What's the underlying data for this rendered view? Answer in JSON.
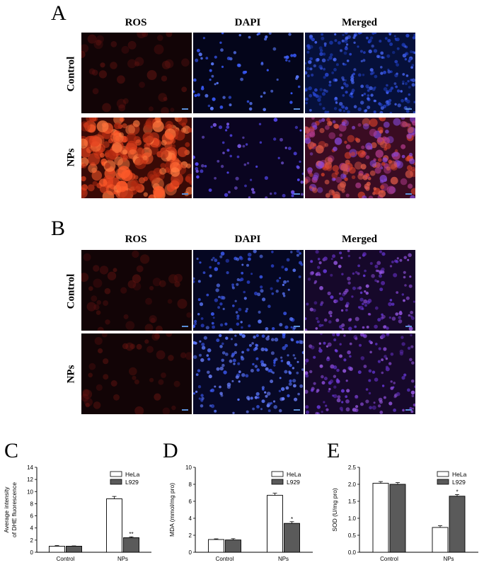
{
  "panels": {
    "A": {
      "letter": "A"
    },
    "B": {
      "letter": "B"
    },
    "C": {
      "letter": "C"
    },
    "D": {
      "letter": "D"
    },
    "E": {
      "letter": "E"
    }
  },
  "column_headers": [
    "ROS",
    "DAPI",
    "Merged"
  ],
  "row_labels": [
    "Control",
    "NPs"
  ],
  "colors": {
    "ros_red": "#d83a22",
    "dapi_blue": "#3a4fe0",
    "dark_bar": "#5a5a5a",
    "scalebar": "#5a8fd8"
  },
  "micrographs": {
    "A": {
      "Control": {
        "ROS": "dim",
        "DAPI": "sparse",
        "Merged": "dense-blue"
      },
      "NPs": {
        "ROS": "bright",
        "DAPI": "sparse-purple",
        "Merged": "red-purple"
      }
    },
    "B": {
      "Control": {
        "ROS": "dim",
        "DAPI": "medium",
        "Merged": "purple"
      },
      "NPs": {
        "ROS": "dim",
        "DAPI": "dense",
        "Merged": "purple"
      }
    }
  },
  "chart_data": [
    {
      "panel": "C",
      "type": "bar",
      "categories": [
        "Control",
        "NPs"
      ],
      "series": [
        {
          "name": "HeLa",
          "values": [
            1.0,
            8.8
          ],
          "errors": [
            0.1,
            0.4
          ]
        },
        {
          "name": "L929",
          "values": [
            1.0,
            2.4
          ],
          "errors": [
            0.05,
            0.15
          ]
        }
      ],
      "significance": [
        {
          "category": "NPs",
          "series": "L929",
          "mark": "**"
        }
      ],
      "ylabel_lines": [
        "Average intensity",
        "of DHE fluorescence"
      ],
      "yticks": [
        "0",
        "2",
        "4",
        "6",
        "8",
        "10",
        "12",
        "14"
      ],
      "ylim": [
        0,
        14
      ],
      "legend": "top-right"
    },
    {
      "panel": "D",
      "type": "bar",
      "categories": [
        "Control",
        "NPs"
      ],
      "series": [
        {
          "name": "HeLa",
          "values": [
            1.5,
            6.7
          ],
          "errors": [
            0.08,
            0.25
          ]
        },
        {
          "name": "L929",
          "values": [
            1.45,
            3.4
          ],
          "errors": [
            0.15,
            0.2
          ]
        }
      ],
      "significance": [
        {
          "category": "NPs",
          "series": "L929",
          "mark": "*"
        }
      ],
      "ylabel_lines": [
        "MDA (mmol/mg pro)"
      ],
      "yticks": [
        "0",
        "2",
        "4",
        "6",
        "8",
        "10"
      ],
      "ylim": [
        0,
        10
      ],
      "legend": "top-right"
    },
    {
      "panel": "E",
      "type": "bar",
      "categories": [
        "Control",
        "NPs"
      ],
      "series": [
        {
          "name": "HeLa",
          "values": [
            2.03,
            0.73
          ],
          "errors": [
            0.05,
            0.05
          ]
        },
        {
          "name": "L929",
          "values": [
            2.0,
            1.65
          ],
          "errors": [
            0.05,
            0.05
          ]
        }
      ],
      "significance": [
        {
          "category": "NPs",
          "series": "L929",
          "mark": "*"
        }
      ],
      "ylabel_lines": [
        "SOD (U/mg pro)"
      ],
      "yticks": [
        "0.0",
        "0.5",
        "1.0",
        "1.5",
        "2.0",
        "2.5"
      ],
      "ylim": [
        0,
        2.5
      ],
      "legend": "top-right"
    }
  ]
}
